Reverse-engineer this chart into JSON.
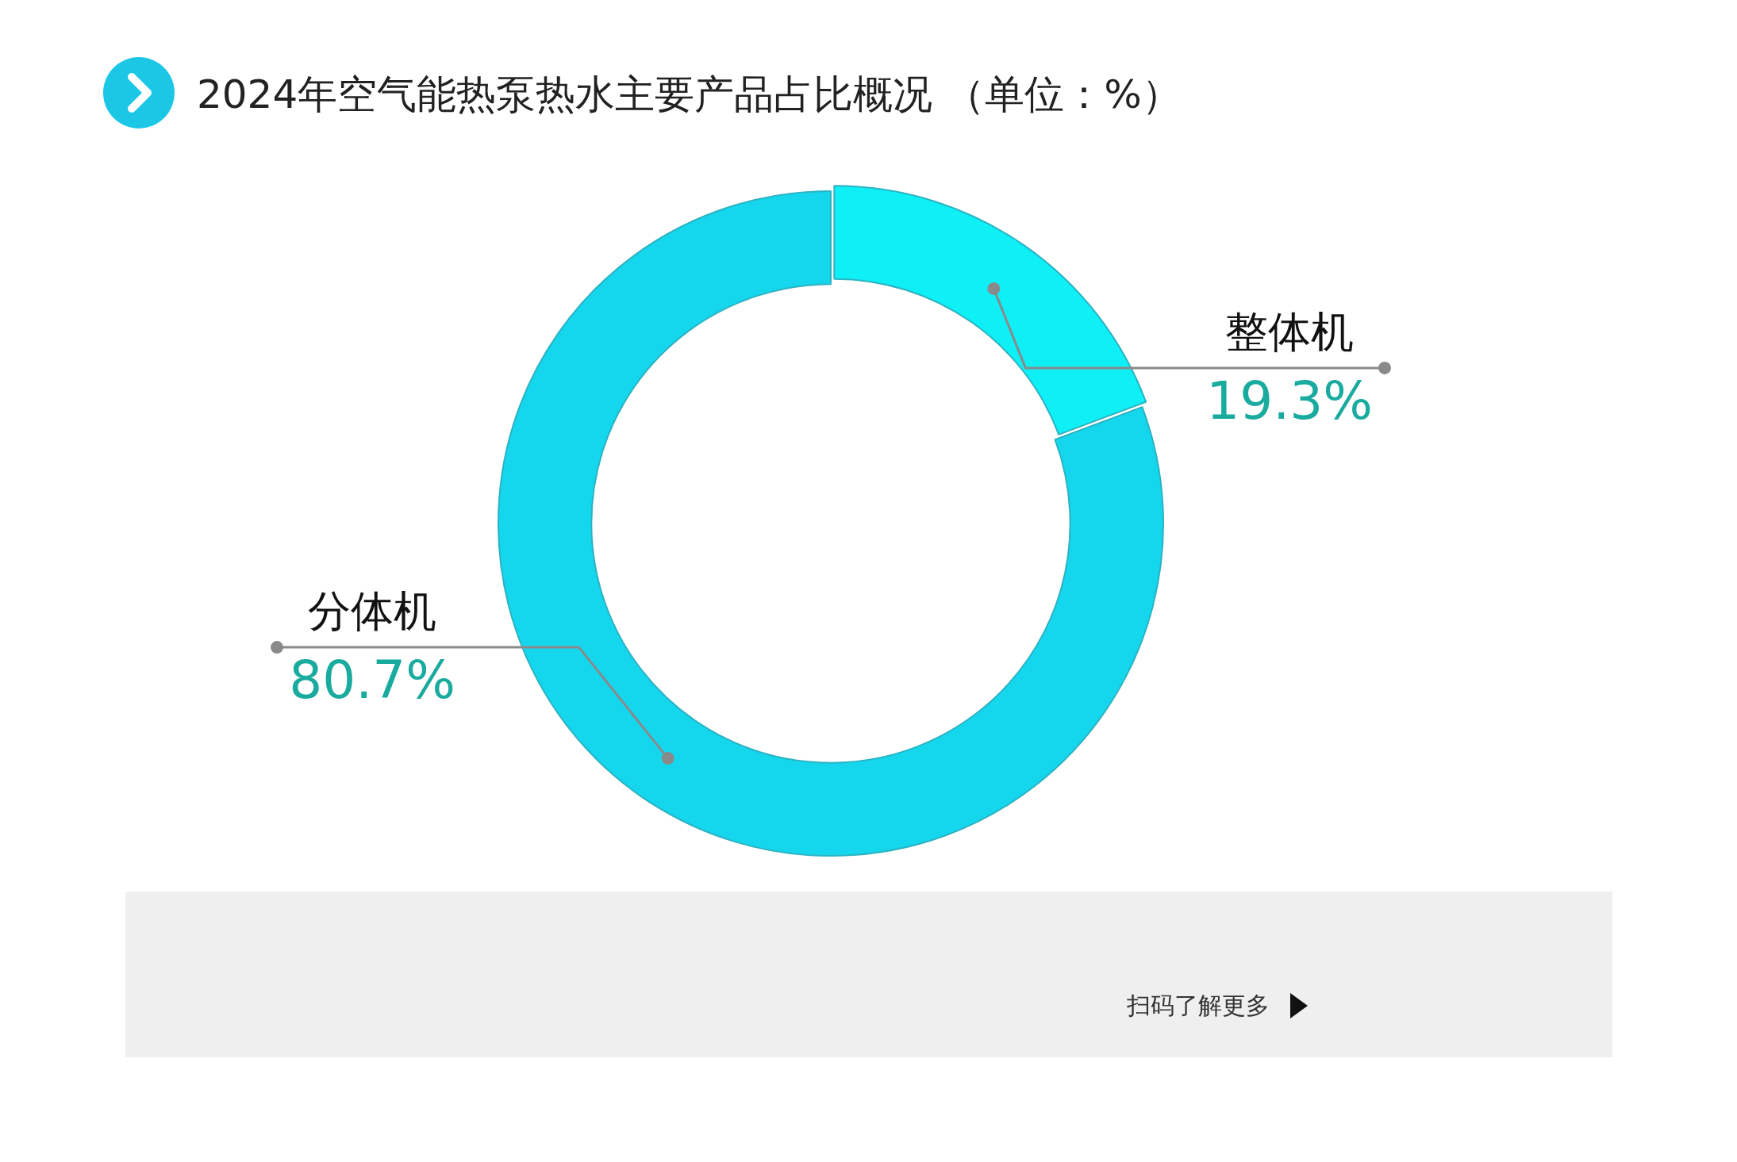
{
  "chart_data": {
    "type": "donut",
    "title": "2024年空气能热泵热水主要产品占比概况 （单位：%）",
    "categories": [
      "整体机",
      "分体机"
    ],
    "values": [
      19.3,
      80.7
    ],
    "value_labels": [
      "19.3%",
      "80.7%"
    ],
    "colors": [
      "#0ef0f6",
      "#14d7ee"
    ],
    "annotations": [
      "扫码了解更多"
    ]
  }
}
